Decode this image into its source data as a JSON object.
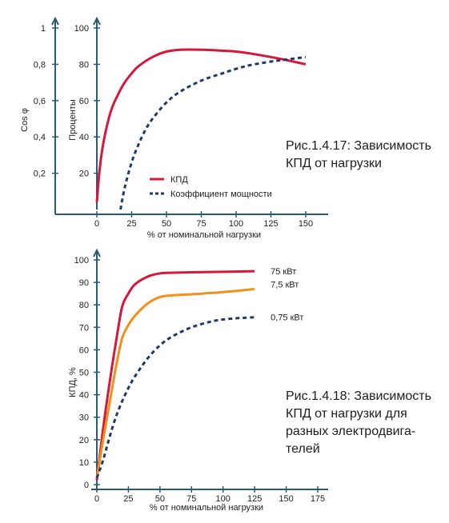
{
  "colors": {
    "axis": "#2c5a73",
    "red": "#d6163a",
    "orange": "#f39019",
    "navy": "#1e3a66",
    "text": "#1d1d1b"
  },
  "chart_data": [
    {
      "type": "line",
      "xlabel": "% от номинальной нагрузки",
      "ylabel": "Проценты",
      "y2label": "Cos φ",
      "xlim": [
        0,
        150
      ],
      "ylim": [
        0,
        100
      ],
      "y2lim": [
        0,
        1
      ],
      "x_ticks": [
        "0",
        "25",
        "50",
        "75",
        "100",
        "125",
        "150"
      ],
      "y_ticks": [
        "20",
        "40",
        "60",
        "80",
        "100"
      ],
      "y2_ticks": [
        "0,2",
        "0,4",
        "0,6",
        "0,8",
        "1"
      ],
      "legend_position": "middle-right",
      "caption": [
        "Рис.1.4.17: Зависимость",
        "КПД от нагрузки"
      ],
      "series": [
        {
          "name": "КПД",
          "style": "solid",
          "color": "#d6163a",
          "x": [
            0,
            2,
            5,
            10,
            15,
            20,
            25,
            30,
            40,
            50,
            60,
            75,
            90,
            100,
            110,
            125,
            135,
            150
          ],
          "y": [
            4,
            22,
            38,
            54,
            63,
            70,
            75,
            79,
            84,
            87,
            88,
            88,
            87.5,
            87,
            86,
            84,
            82.5,
            80
          ]
        },
        {
          "name": "Коэффициент мощности",
          "style": "dashed",
          "color": "#1e3a66",
          "x": [
            17,
            20,
            25,
            30,
            35,
            40,
            50,
            60,
            75,
            90,
            100,
            110,
            125,
            135,
            150
          ],
          "y": [
            0,
            12,
            26,
            36,
            44,
            50,
            59,
            65,
            71,
            75,
            77.5,
            79.5,
            81.5,
            82.5,
            84
          ]
        }
      ]
    },
    {
      "type": "line",
      "xlabel": "% от номинальной нагрузки",
      "ylabel": "КПД, %",
      "xlim": [
        0,
        175
      ],
      "ylim": [
        0,
        100
      ],
      "x_ticks": [
        "0",
        "25",
        "50",
        "75",
        "100",
        "125",
        "150",
        "175"
      ],
      "y_ticks": [
        "0",
        "10",
        "20",
        "30",
        "40",
        "50",
        "60",
        "70",
        "80",
        "90",
        "100"
      ],
      "caption": [
        "Рис.1.4.18: Зависимость",
        "КПД от нагрузки для",
        "разных электродвига-",
        "телей"
      ],
      "series": [
        {
          "name": "75 кВт",
          "style": "solid",
          "color": "#d6163a",
          "x": [
            0,
            5,
            10,
            15,
            20,
            25,
            30,
            40,
            50,
            60,
            75,
            100,
            125
          ],
          "y": [
            2,
            25,
            45,
            63,
            79,
            85,
            89,
            92.5,
            94,
            94.3,
            94.5,
            94.7,
            95
          ]
        },
        {
          "name": "7,5 кВт",
          "style": "solid",
          "color": "#f39019",
          "x": [
            0,
            5,
            10,
            15,
            20,
            25,
            30,
            40,
            50,
            60,
            75,
            100,
            125
          ],
          "y": [
            3,
            20,
            36,
            52,
            65,
            71,
            75,
            80.5,
            83.5,
            84.2,
            84.7,
            85.7,
            87
          ]
        },
        {
          "name": "0,75 кВт",
          "style": "dashed",
          "color": "#1e3a66",
          "x": [
            0,
            5,
            10,
            15,
            20,
            25,
            30,
            40,
            50,
            60,
            75,
            90,
            100,
            110,
            115,
            125
          ],
          "y": [
            3,
            11,
            21,
            30,
            37,
            43,
            48,
            56,
            62,
            66,
            70,
            72.5,
            73.5,
            74,
            74.2,
            74.5
          ]
        }
      ]
    }
  ]
}
